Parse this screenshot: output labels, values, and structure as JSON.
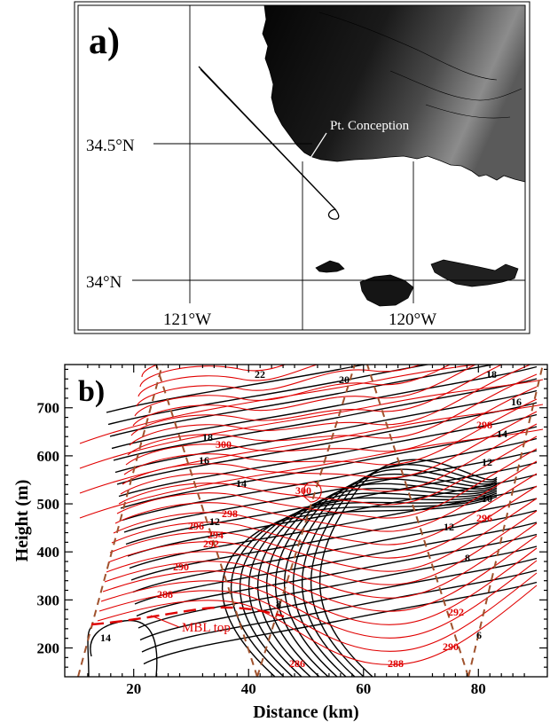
{
  "panel_a": {
    "label": "a)",
    "place_label": "Pt. Conception",
    "lat_labels": [
      "34.5°N",
      "34°N"
    ],
    "lon_labels": [
      "121°W",
      "120°W"
    ],
    "colors": {
      "land_dark": "#0a0a0a",
      "land_mid": "#3a3a3a",
      "land_light": "#9a9a9a",
      "sea": "#ffffff"
    }
  },
  "panel_b": {
    "label": "b)",
    "mbl_label": "MBL top",
    "colors": {
      "potential_temperature": "#e00000",
      "wind_speed": "#000000",
      "flight_track": "#a0522d"
    }
  },
  "chart_data": [
    {
      "type": "map",
      "panel": "a)",
      "latitude_lines": [
        "34.5°N",
        "34°N"
      ],
      "longitude_lines": [
        "121°W",
        "120°W"
      ],
      "annotation": "Pt. Conception"
    },
    {
      "type": "line",
      "panel": "b)",
      "xlabel": "Distance (km)",
      "ylabel": "Height (m)",
      "xlim": [
        8,
        92
      ],
      "ylim": [
        140,
        790
      ],
      "xticks": [
        20,
        40,
        60,
        80
      ],
      "yticks": [
        200,
        300,
        400,
        500,
        600,
        700
      ],
      "series": [
        {
          "name": "wind speed contours",
          "contour_labels": [
            "22",
            "20",
            "18",
            "18",
            "16",
            "16",
            "14",
            "14",
            "12",
            "12",
            "10",
            "8",
            "8",
            "6",
            "14",
            "12"
          ]
        },
        {
          "name": "potential temperature contours",
          "contour_labels": [
            "300",
            "300",
            "298",
            "298",
            "296",
            "296",
            "294",
            "292",
            "292",
            "290",
            "290",
            "288",
            "288",
            "286"
          ]
        }
      ],
      "annotations": [
        {
          "text": "MBL top",
          "x": 40,
          "y": 272
        }
      ]
    }
  ]
}
